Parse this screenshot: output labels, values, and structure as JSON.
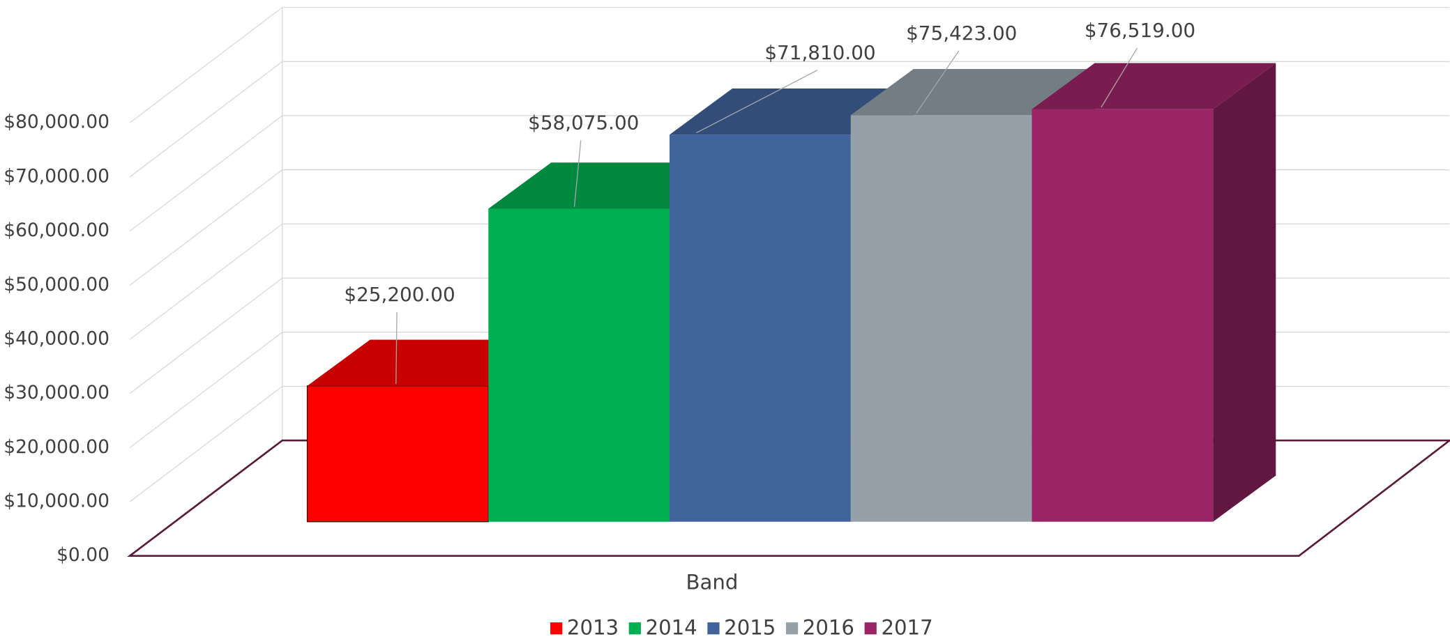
{
  "chart_data": {
    "type": "bar",
    "categories": [
      "Band"
    ],
    "series": [
      {
        "name": "2013",
        "color": "#ff0000",
        "values": [
          25200
        ],
        "value_labels": [
          "$25,200.00"
        ]
      },
      {
        "name": "2014",
        "color": "#00b050",
        "values": [
          58075
        ],
        "value_labels": [
          "$58,075.00"
        ]
      },
      {
        "name": "2015",
        "color": "#40639c",
        "values": [
          71810
        ],
        "value_labels": [
          "$71,810.00"
        ]
      },
      {
        "name": "2016",
        "color": "#95a0a8",
        "values": [
          75423
        ],
        "value_labels": [
          "$75,423.00"
        ]
      },
      {
        "name": "2017",
        "color": "#9b2467",
        "values": [
          76519
        ],
        "value_labels": [
          "$76,519.00"
        ]
      }
    ],
    "ylim": [
      0,
      80000
    ],
    "yticks": [
      {
        "value": 0,
        "label": "$0.00"
      },
      {
        "value": 10000,
        "label": "$10,000.00"
      },
      {
        "value": 20000,
        "label": "$20,000.00"
      },
      {
        "value": 30000,
        "label": "$30,000.00"
      },
      {
        "value": 40000,
        "label": "$40,000.00"
      },
      {
        "value": 50000,
        "label": "$50,000.00"
      },
      {
        "value": 60000,
        "label": "$60,000.00"
      },
      {
        "value": 70000,
        "label": "$70,000.00"
      },
      {
        "value": 80000,
        "label": "$80,000.00"
      }
    ],
    "grid": true,
    "legend": "bottom"
  }
}
